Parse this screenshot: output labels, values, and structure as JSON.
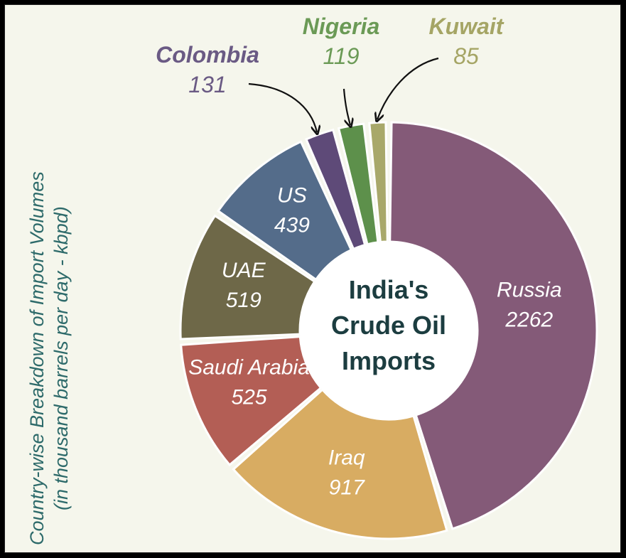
{
  "chart_data": {
    "type": "donut",
    "center_label": [
      "India's",
      "Crude Oil",
      "Imports"
    ],
    "ylabel_lines": [
      "Country-wise Breakdown of Import Volumes",
      "(in thousand barrels per day - kbpd)"
    ],
    "order": "clockwise from top",
    "slices": [
      {
        "name": "Russia",
        "value": 2262,
        "color": "#845a78",
        "label_color": "#ffffff"
      },
      {
        "name": "Iraq",
        "value": 917,
        "color": "#d8ac62",
        "label_color": "#ffffff"
      },
      {
        "name": "Saudi Arabia",
        "value": 525,
        "color": "#b35e55",
        "label_color": "#ffffff"
      },
      {
        "name": "UAE",
        "value": 519,
        "color": "#6e6848",
        "label_color": "#ffffff"
      },
      {
        "name": "US",
        "value": 439,
        "color": "#546c8a",
        "label_color": "#ffffff"
      },
      {
        "name": "Colombia",
        "value": 131,
        "color": "#5e4a78",
        "label_color": "#6a5a84"
      },
      {
        "name": "Nigeria",
        "value": 119,
        "color": "#5d904b",
        "label_color": "#6b9a56"
      },
      {
        "name": "Kuwait",
        "value": 85,
        "color": "#a8a86a",
        "label_color": "#a5a565"
      }
    ]
  }
}
